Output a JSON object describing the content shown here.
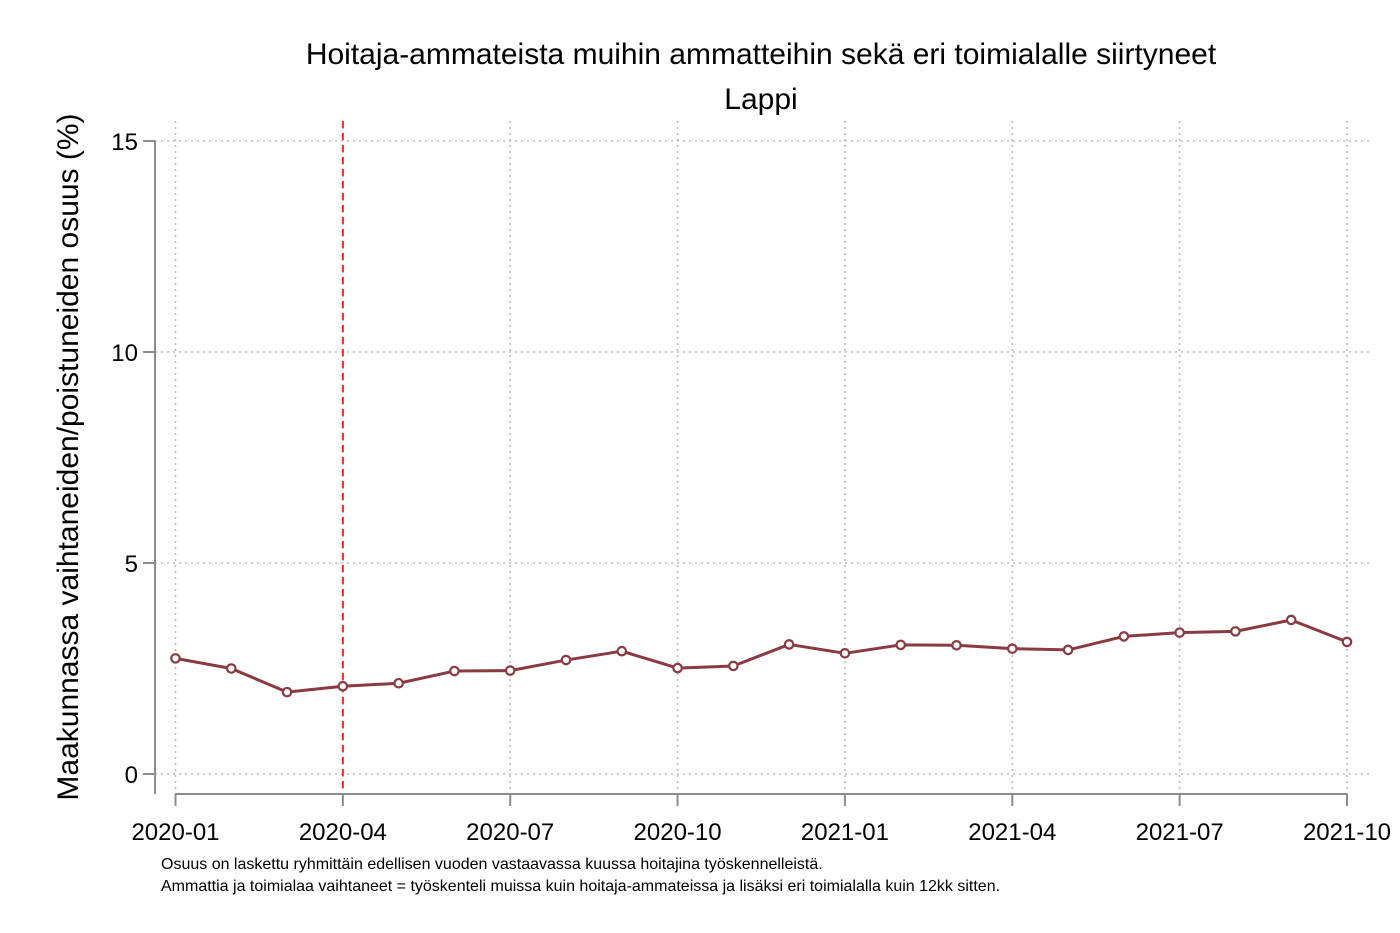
{
  "chart_data": {
    "type": "line",
    "title": "Hoitaja-ammateista muihin ammatteihin sekä eri toimialalle siirtyneet",
    "subtitle": "Lappi",
    "xlabel": "",
    "ylabel": "Maakunnassa vaihtaneiden/poistuneiden osuus (%)",
    "ylim": [
      0,
      15
    ],
    "yticks": [
      0,
      5,
      10,
      15
    ],
    "x": [
      "2020-01",
      "2020-02",
      "2020-03",
      "2020-04",
      "2020-05",
      "2020-06",
      "2020-07",
      "2020-08",
      "2020-09",
      "2020-10",
      "2020-11",
      "2020-12",
      "2021-01",
      "2021-02",
      "2021-03",
      "2021-04",
      "2021-05",
      "2021-06",
      "2021-07",
      "2021-08",
      "2021-09",
      "2021-10"
    ],
    "xticks": [
      "2020-01",
      "2020-04",
      "2020-07",
      "2020-10",
      "2021-01",
      "2021-04",
      "2021-07",
      "2021-10"
    ],
    "series": [
      {
        "values": [
          2.74,
          2.5,
          1.94,
          2.08,
          2.15,
          2.44,
          2.45,
          2.7,
          2.91,
          2.51,
          2.56,
          3.07,
          2.86,
          3.06,
          3.05,
          2.97,
          2.94,
          3.26,
          3.35,
          3.38,
          3.65,
          3.13
        ],
        "color": "#8b3a42"
      }
    ],
    "reference_line": {
      "x": "2020-04",
      "color": "#e8302b",
      "style": "dashed"
    },
    "grid": true,
    "notes": [
      "Osuus on laskettu ryhmittäin edellisen vuoden vastaavassa kuussa hoitajina työskennelleistä.",
      "Ammattia ja toimialaa vaihtaneet = työskenteli muissa kuin hoitaja-ammateissa ja lisäksi eri toimialalla kuin 12kk sitten."
    ]
  }
}
